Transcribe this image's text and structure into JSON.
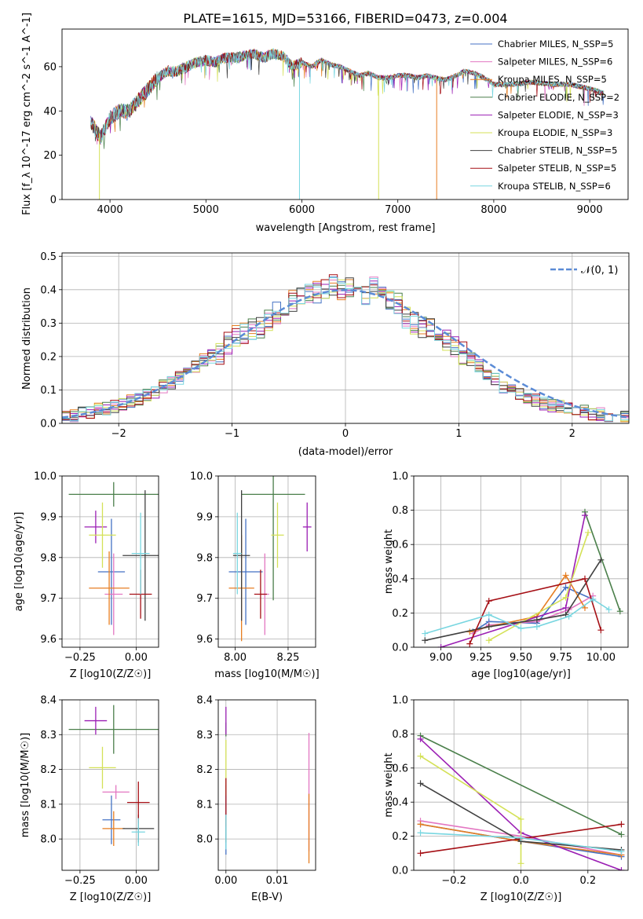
{
  "figure_title": "PLATE=1615, MJD=53166, FIBERID=0473, z=0.004",
  "series_styles": [
    {
      "name": "Chabrier MILES, N_SSP=5",
      "color": "#4472c4"
    },
    {
      "name": "Salpeter MILES, N_SSP=6",
      "color": "#e377c2"
    },
    {
      "name": "Kroupa MILES, N_SSP=5",
      "color": "#e67e22"
    },
    {
      "name": "Chabrier ELODIE, N_SSP=2",
      "color": "#4a7f4a"
    },
    {
      "name": "Salpeter ELODIE, N_SSP=3",
      "color": "#9b1fb4"
    },
    {
      "name": "Kroupa ELODIE, N_SSP=3",
      "color": "#d4e157"
    },
    {
      "name": "Chabrier STELIB, N_SSP=5",
      "color": "#404040"
    },
    {
      "name": "Salpeter STELIB, N_SSP=5",
      "color": "#a50f15"
    },
    {
      "name": "Kroupa STELIB, N_SSP=6",
      "color": "#78d6e0"
    }
  ],
  "chart_data": [
    {
      "id": "spectrum",
      "type": "line",
      "xlabel": "wavelength [Angstrom, rest frame]",
      "ylabel": "Flux [f_λ 10^-17 erg cm^-2 s^-1 A^-1]",
      "xlim": [
        3500,
        9400
      ],
      "ylim": [
        0,
        77
      ],
      "xticks": [
        "4000",
        "5000",
        "6000",
        "7000",
        "8000",
        "9000"
      ],
      "yticks": [
        "0",
        "20",
        "40",
        "60"
      ],
      "legend": [
        "Chabrier MILES, N_SSP=5",
        "Salpeter MILES, N_SSP=6",
        "Kroupa MILES, N_SSP=5",
        "Chabrier ELODIE, N_SSP=2",
        "Salpeter ELODIE, N_SSP=3",
        "Kroupa ELODIE, N_SSP=3",
        "Chabrier STELIB, N_SSP=5",
        "Salpeter STELIB, N_SSP=5",
        "Kroupa STELIB, N_SSP=6"
      ],
      "legend_position": "top-right",
      "envelope": [
        [
          3800,
          35
        ],
        [
          3900,
          28
        ],
        [
          3950,
          32
        ],
        [
          4000,
          37
        ],
        [
          4100,
          40
        ],
        [
          4200,
          40
        ],
        [
          4300,
          45
        ],
        [
          4400,
          50
        ],
        [
          4500,
          55
        ],
        [
          4600,
          58
        ],
        [
          4700,
          58
        ],
        [
          4800,
          60
        ],
        [
          4900,
          62
        ],
        [
          5000,
          63
        ],
        [
          5100,
          62
        ],
        [
          5200,
          64
        ],
        [
          5300,
          64
        ],
        [
          5400,
          65
        ],
        [
          5500,
          66
        ],
        [
          5600,
          64
        ],
        [
          5700,
          66
        ],
        [
          5800,
          65
        ],
        [
          5900,
          60
        ],
        [
          6000,
          62
        ],
        [
          6100,
          60
        ],
        [
          6200,
          63
        ],
        [
          6300,
          61
        ],
        [
          6400,
          60
        ],
        [
          6500,
          58
        ],
        [
          6600,
          56
        ],
        [
          6700,
          57
        ],
        [
          6800,
          55
        ],
        [
          6900,
          55
        ],
        [
          7000,
          56
        ],
        [
          7100,
          56
        ],
        [
          7200,
          55
        ],
        [
          7300,
          56
        ],
        [
          7400,
          55
        ],
        [
          7500,
          54
        ],
        [
          7600,
          56
        ],
        [
          7700,
          58
        ],
        [
          7800,
          57
        ],
        [
          7900,
          55
        ],
        [
          8000,
          52
        ],
        [
          8200,
          52
        ],
        [
          8400,
          53
        ],
        [
          8600,
          52
        ],
        [
          8800,
          52
        ],
        [
          9000,
          50
        ],
        [
          9150,
          48
        ]
      ],
      "spikes": [
        {
          "x": 5975,
          "y0": 62,
          "y1": 0
        },
        {
          "x": 6800,
          "y0": 55,
          "y1": 0
        },
        {
          "x": 7405,
          "y0": 55,
          "y1": 0
        },
        {
          "x": 3890,
          "y0": 30,
          "y1": 0
        }
      ]
    },
    {
      "id": "residuals",
      "type": "histogram",
      "xlabel": "(data-model)/error",
      "ylabel": "Normed distribution",
      "xlim": [
        -2.5,
        2.5
      ],
      "ylim": [
        0,
        0.51
      ],
      "xticks": [
        "-2",
        "-1",
        "0",
        "1",
        "2"
      ],
      "yticks": [
        "0.0",
        "0.1",
        "0.2",
        "0.3",
        "0.4",
        "0.5"
      ],
      "reference": {
        "label": "𝒩(0, 1)",
        "mean": 0,
        "sigma": 1
      },
      "legend_position": "top-right",
      "bin_width": 0.1,
      "bin_start": -2.5,
      "base_counts": [
        0.02,
        0.025,
        0.03,
        0.035,
        0.04,
        0.045,
        0.05,
        0.055,
        0.065,
        0.075,
        0.085,
        0.095,
        0.11,
        0.12,
        0.135,
        0.15,
        0.17,
        0.19,
        0.2,
        0.21,
        0.24,
        0.26,
        0.27,
        0.28,
        0.29,
        0.31,
        0.33,
        0.35,
        0.37,
        0.38,
        0.39,
        0.39,
        0.4,
        0.41,
        0.4,
        0.41,
        0.4,
        0.39,
        0.41,
        0.38,
        0.37,
        0.36,
        0.32,
        0.3,
        0.29,
        0.28,
        0.27,
        0.25,
        0.23,
        0.21,
        0.19,
        0.17,
        0.15,
        0.13,
        0.11,
        0.1,
        0.09,
        0.08,
        0.07,
        0.06,
        0.055,
        0.05,
        0.045,
        0.04,
        0.035,
        0.03,
        0.028,
        0.025,
        0.022,
        0.02
      ]
    },
    {
      "id": "age-vs-Z",
      "type": "errorbar",
      "xlabel": "Z [log10(Z/Z☉)]",
      "ylabel": "age [log10(age/yr)]",
      "xlim": [
        -0.33,
        0.1
      ],
      "ylim": [
        9.58,
        10.0
      ],
      "xticks": [
        "-0.25",
        "0.00"
      ],
      "xtick_values": [
        -0.25,
        0.0
      ],
      "yticks": [
        "9.6",
        "9.7",
        "9.8",
        "9.9",
        "10.0"
      ],
      "points": [
        {
          "x": -0.11,
          "y": 9.765,
          "xerr": 0.06,
          "yerr": 0.13
        },
        {
          "x": -0.1,
          "y": 9.71,
          "xerr": 0.04,
          "yerr": 0.1
        },
        {
          "x": -0.12,
          "y": 9.725,
          "xerr": 0.09,
          "yerr": 0.09
        },
        {
          "x": -0.1,
          "y": 9.955,
          "xerr": 0.2,
          "yerr": 0.03
        },
        {
          "x": -0.18,
          "y": 9.875,
          "xerr": 0.05,
          "yerr": 0.04
        },
        {
          "x": -0.15,
          "y": 9.855,
          "xerr": 0.06,
          "yerr": 0.08
        },
        {
          "x": 0.04,
          "y": 9.805,
          "xerr": 0.1,
          "yerr": 0.16
        },
        {
          "x": 0.02,
          "y": 9.71,
          "xerr": 0.05,
          "yerr": 0.06
        },
        {
          "x": 0.02,
          "y": 9.81,
          "xerr": 0.04,
          "yerr": 0.1
        }
      ]
    },
    {
      "id": "age-vs-mass",
      "type": "errorbar",
      "xlabel": "mass [log10(M/M☉)]",
      "ylabel": "",
      "xlim": [
        7.92,
        8.38
      ],
      "ylim": [
        9.58,
        10.0
      ],
      "xticks": [
        "8.00",
        "8.25"
      ],
      "xtick_values": [
        8.0,
        8.25
      ],
      "yticks": [
        "9.6",
        "9.7",
        "9.8",
        "9.9",
        "10.0"
      ],
      "points": [
        {
          "x": 8.05,
          "y": 9.765,
          "xerr": 0.08,
          "yerr": 0.13
        },
        {
          "x": 8.14,
          "y": 9.71,
          "xerr": 0.02,
          "yerr": 0.1
        },
        {
          "x": 8.03,
          "y": 9.725,
          "xerr": 0.06,
          "yerr": 0.13
        },
        {
          "x": 8.18,
          "y": 9.955,
          "xerr": 0.15,
          "yerr": 0.26
        },
        {
          "x": 8.34,
          "y": 9.875,
          "xerr": 0.02,
          "yerr": 0.06
        },
        {
          "x": 8.2,
          "y": 9.855,
          "xerr": 0.03,
          "yerr": 0.08
        },
        {
          "x": 8.03,
          "y": 9.805,
          "xerr": 0.04,
          "yerr": 0.16
        },
        {
          "x": 8.12,
          "y": 9.71,
          "xerr": 0.03,
          "yerr": 0.06
        },
        {
          "x": 8.01,
          "y": 9.81,
          "xerr": 0.02,
          "yerr": 0.1
        }
      ]
    },
    {
      "id": "mass-weight-vs-age",
      "type": "line",
      "xlabel": "age [log10(age/yr)]",
      "ylabel": "mass weight",
      "xlim": [
        8.83,
        10.17
      ],
      "ylim": [
        0,
        1.0
      ],
      "xticks": [
        "9.00",
        "9.25",
        "9.50",
        "9.75",
        "10.00"
      ],
      "xtick_values": [
        9.0,
        9.25,
        9.5,
        9.75,
        10.0
      ],
      "yticks": [
        "0.0",
        "0.2",
        "0.4",
        "0.6",
        "0.8",
        "1.0"
      ],
      "lines": [
        [
          [
            9.2,
            0.09
          ],
          [
            9.3,
            0.15
          ],
          [
            9.6,
            0.14
          ],
          [
            9.78,
            0.35
          ],
          [
            9.95,
            0.28
          ]
        ],
        [
          [
            9.2,
            0.08
          ],
          [
            9.3,
            0.13
          ],
          [
            9.6,
            0.15
          ],
          [
            9.8,
            0.22
          ],
          [
            9.95,
            0.3
          ]
        ],
        [
          [
            9.18,
            0.09
          ],
          [
            9.3,
            0.12
          ],
          [
            9.6,
            0.18
          ],
          [
            9.78,
            0.42
          ],
          [
            9.9,
            0.23
          ]
        ],
        [
          [
            9.9,
            0.79
          ],
          [
            10.12,
            0.21
          ]
        ],
        [
          [
            9.0,
            0.0
          ],
          [
            9.78,
            0.23
          ],
          [
            9.9,
            0.77
          ]
        ],
        [
          [
            9.3,
            0.04
          ],
          [
            9.78,
            0.29
          ],
          [
            9.92,
            0.67
          ]
        ],
        [
          [
            8.9,
            0.04
          ],
          [
            9.3,
            0.12
          ],
          [
            9.6,
            0.16
          ],
          [
            9.78,
            0.19
          ],
          [
            10.0,
            0.51
          ]
        ],
        [
          [
            9.18,
            0.02
          ],
          [
            9.3,
            0.27
          ],
          [
            9.9,
            0.4
          ],
          [
            10.0,
            0.1
          ]
        ],
        [
          [
            8.9,
            0.08
          ],
          [
            9.3,
            0.19
          ],
          [
            9.5,
            0.11
          ],
          [
            9.6,
            0.12
          ],
          [
            9.8,
            0.18
          ],
          [
            9.95,
            0.28
          ],
          [
            10.05,
            0.22
          ]
        ]
      ]
    },
    {
      "id": "mass-vs-Z",
      "type": "errorbar",
      "xlabel": "Z [log10(Z/Z☉)]",
      "ylabel": "mass [log10(M/M☉)]",
      "xlim": [
        -0.33,
        0.1
      ],
      "ylim": [
        7.91,
        8.4
      ],
      "xticks": [
        "-0.25",
        "0.00"
      ],
      "xtick_values": [
        -0.25,
        0.0
      ],
      "yticks": [
        "8.0",
        "8.1",
        "8.2",
        "8.3",
        "8.4"
      ],
      "points": [
        {
          "x": -0.11,
          "y": 8.055,
          "xerr": 0.04,
          "yerr": 0.07
        },
        {
          "x": -0.09,
          "y": 8.135,
          "xerr": 0.06,
          "yerr": 0.02
        },
        {
          "x": -0.1,
          "y": 8.03,
          "xerr": 0.05,
          "yerr": 0.05
        },
        {
          "x": -0.1,
          "y": 8.315,
          "xerr": 0.2,
          "yerr": 0.07
        },
        {
          "x": -0.18,
          "y": 8.34,
          "xerr": 0.05,
          "yerr": 0.04
        },
        {
          "x": -0.15,
          "y": 8.205,
          "xerr": 0.06,
          "yerr": 0.06
        },
        {
          "x": 0.01,
          "y": 8.03,
          "xerr": 0.07,
          "yerr": 0.04
        },
        {
          "x": 0.01,
          "y": 8.105,
          "xerr": 0.05,
          "yerr": 0.06
        },
        {
          "x": 0.01,
          "y": 8.02,
          "xerr": 0.03,
          "yerr": 0.04
        }
      ]
    },
    {
      "id": "mass-vs-ebv",
      "type": "errorbar",
      "xlabel": "E(B-V)",
      "ylabel": "",
      "xlim": [
        -0.0015,
        0.0175
      ],
      "ylim": [
        7.91,
        8.4
      ],
      "xticks": [
        "0.00",
        "0.01"
      ],
      "xtick_values": [
        0.0,
        0.01
      ],
      "yticks": [
        "8.0",
        "8.1",
        "8.2",
        "8.3",
        "8.4"
      ],
      "points": [
        {
          "x": 0.0,
          "y": 8.055,
          "xerr": 0,
          "yerr": 0.1
        },
        {
          "x": 0.0162,
          "y": 8.135,
          "xerr": 0,
          "yerr": 0.17
        },
        {
          "x": 0.0162,
          "y": 8.03,
          "xerr": 0,
          "yerr": 0.1
        },
        {
          "x": 0.0,
          "y": 8.315,
          "xerr": 0,
          "yerr": 0.02
        },
        {
          "x": 0.0,
          "y": 8.34,
          "xerr": 0,
          "yerr": 0.04
        },
        {
          "x": 0.0,
          "y": 8.205,
          "xerr": 0,
          "yerr": 0.08
        },
        {
          "x": 0.0,
          "y": 8.03,
          "xerr": 0,
          "yerr": 0.04
        },
        {
          "x": 0.0,
          "y": 8.105,
          "xerr": 0,
          "yerr": 0.07
        },
        {
          "x": 0.0,
          "y": 8.02,
          "xerr": 0,
          "yerr": 0.05
        }
      ]
    },
    {
      "id": "mass-weight-vs-Z",
      "type": "line",
      "xlabel": "Z [log10(Z/Z☉)]",
      "ylabel": "mass weight",
      "xlim": [
        -0.32,
        0.32
      ],
      "ylim": [
        0,
        1.0
      ],
      "xticks": [
        "-0.2",
        "0.0",
        "0.2"
      ],
      "xtick_values": [
        -0.2,
        0.0,
        0.2
      ],
      "yticks": [
        "0.0",
        "0.2",
        "0.4",
        "0.6",
        "0.8",
        "1.0"
      ],
      "lines": [
        [
          [
            -0.3,
            0.27
          ],
          [
            0.0,
            0.17
          ],
          [
            0.3,
            0.08
          ]
        ],
        [
          [
            -0.3,
            0.29
          ],
          [
            0.0,
            0.2
          ],
          [
            0.3,
            0.09
          ]
        ],
        [
          [
            -0.3,
            0.27
          ],
          [
            0.0,
            0.17
          ],
          [
            0.3,
            0.09
          ]
        ],
        [
          [
            -0.3,
            0.79
          ],
          [
            0.3,
            0.21
          ]
        ],
        [
          [
            -0.3,
            0.77
          ],
          [
            0.0,
            0.22
          ],
          [
            0.3,
            0.0
          ]
        ],
        [
          [
            -0.3,
            0.67
          ],
          [
            0.0,
            0.3
          ],
          [
            0.0,
            0.04
          ]
        ],
        [
          [
            -0.3,
            0.51
          ],
          [
            0.0,
            0.17
          ],
          [
            0.3,
            0.12
          ]
        ],
        [
          [
            -0.3,
            0.1
          ],
          [
            0.3,
            0.27
          ]
        ],
        [
          [
            -0.3,
            0.22
          ],
          [
            0.0,
            0.19
          ],
          [
            0.3,
            0.11
          ]
        ]
      ]
    }
  ]
}
